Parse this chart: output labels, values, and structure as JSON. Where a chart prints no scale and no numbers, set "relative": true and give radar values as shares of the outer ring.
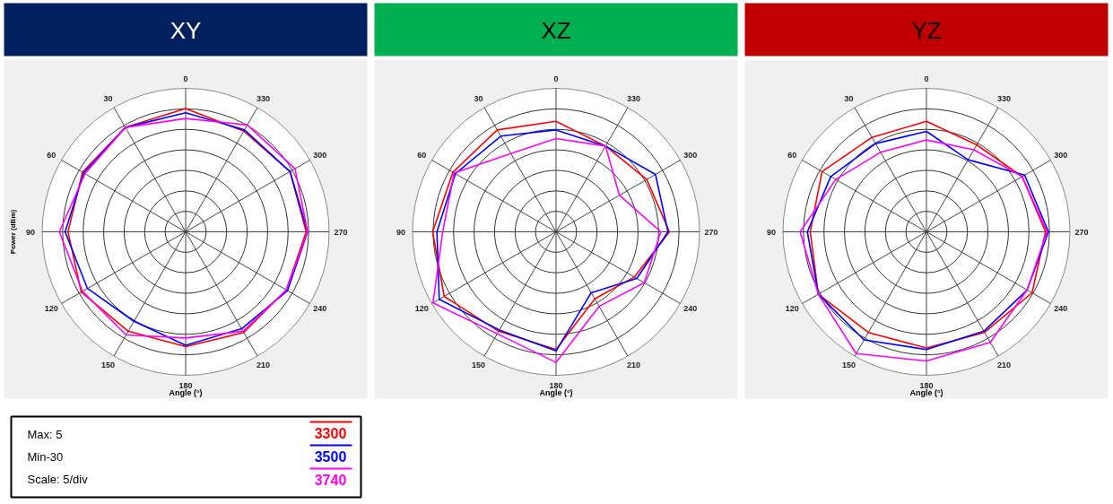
{
  "chart_data": [
    {
      "type": "radar",
      "title": "XY",
      "xlabel": "Angle (°)",
      "ylabel": "Power (dBm)",
      "categories": [
        "0",
        "330",
        "300",
        "270",
        "240",
        "210",
        "180",
        "150",
        "120",
        "90",
        "60",
        "30"
      ],
      "relative": true,
      "grid": true,
      "legend": "bottom right",
      "annotations": [
        "Max: 5",
        "Min-30",
        "Scale: 5/div"
      ],
      "series": [
        {
          "name": "3300",
          "color": "#ff0000",
          "values": [
            0.86,
            0.81,
            0.84,
            0.84,
            0.81,
            0.81,
            0.8,
            0.8,
            0.84,
            0.82,
            0.83,
            0.84
          ]
        },
        {
          "name": "3500",
          "color": "#0000ff",
          "values": [
            0.83,
            0.82,
            0.84,
            0.85,
            0.82,
            0.78,
            0.79,
            0.72,
            0.79,
            0.84,
            0.82,
            0.84
          ]
        },
        {
          "name": "3740",
          "color": "#ff00ff",
          "values": [
            0.79,
            0.86,
            0.88,
            0.85,
            0.81,
            0.8,
            0.74,
            0.83,
            0.83,
            0.88,
            0.81,
            0.84
          ]
        }
      ]
    },
    {
      "type": "radar",
      "title": "XZ",
      "xlabel": "Angle (°)",
      "categories": [
        "0",
        "330",
        "300",
        "270",
        "240",
        "210",
        "180",
        "150",
        "120",
        "90",
        "60",
        "30"
      ],
      "relative": true,
      "grid": true,
      "series": [
        {
          "color": "#ff0000",
          "values": [
            0.77,
            0.69,
            0.73,
            0.79,
            0.63,
            0.54,
            0.82,
            0.8,
            0.9,
            0.86,
            0.83,
            0.82
          ]
        },
        {
          "color": "#0000ff",
          "values": [
            0.71,
            0.69,
            0.8,
            0.78,
            0.65,
            0.49,
            0.83,
            0.79,
            0.94,
            0.83,
            0.81,
            0.77
          ]
        },
        {
          "color": "#ff00ff",
          "values": [
            0.65,
            0.69,
            0.51,
            0.73,
            0.71,
            0.6,
            0.91,
            0.82,
            0.99,
            0.79,
            0.82,
            0.63
          ]
        }
      ]
    },
    {
      "type": "radar",
      "title": "YZ",
      "xlabel": "Angle (°)",
      "categories": [
        "0",
        "330",
        "300",
        "270",
        "240",
        "210",
        "180",
        "150",
        "120",
        "90",
        "60",
        "30"
      ],
      "relative": true,
      "grid": true,
      "series": [
        {
          "color": "#ff0000",
          "values": [
            0.77,
            0.7,
            0.77,
            0.83,
            0.85,
            0.81,
            0.81,
            0.81,
            0.87,
            0.81,
            0.84,
            0.76
          ]
        },
        {
          "color": "#0000ff",
          "values": [
            0.7,
            0.58,
            0.79,
            0.85,
            0.81,
            0.8,
            0.82,
            0.87,
            0.87,
            0.83,
            0.77,
            0.71
          ]
        },
        {
          "color": "#ff00ff",
          "values": [
            0.64,
            0.66,
            0.77,
            0.84,
            0.81,
            0.89,
            0.9,
            0.98,
            0.87,
            0.88,
            0.73,
            0.64
          ]
        }
      ]
    }
  ]
}
